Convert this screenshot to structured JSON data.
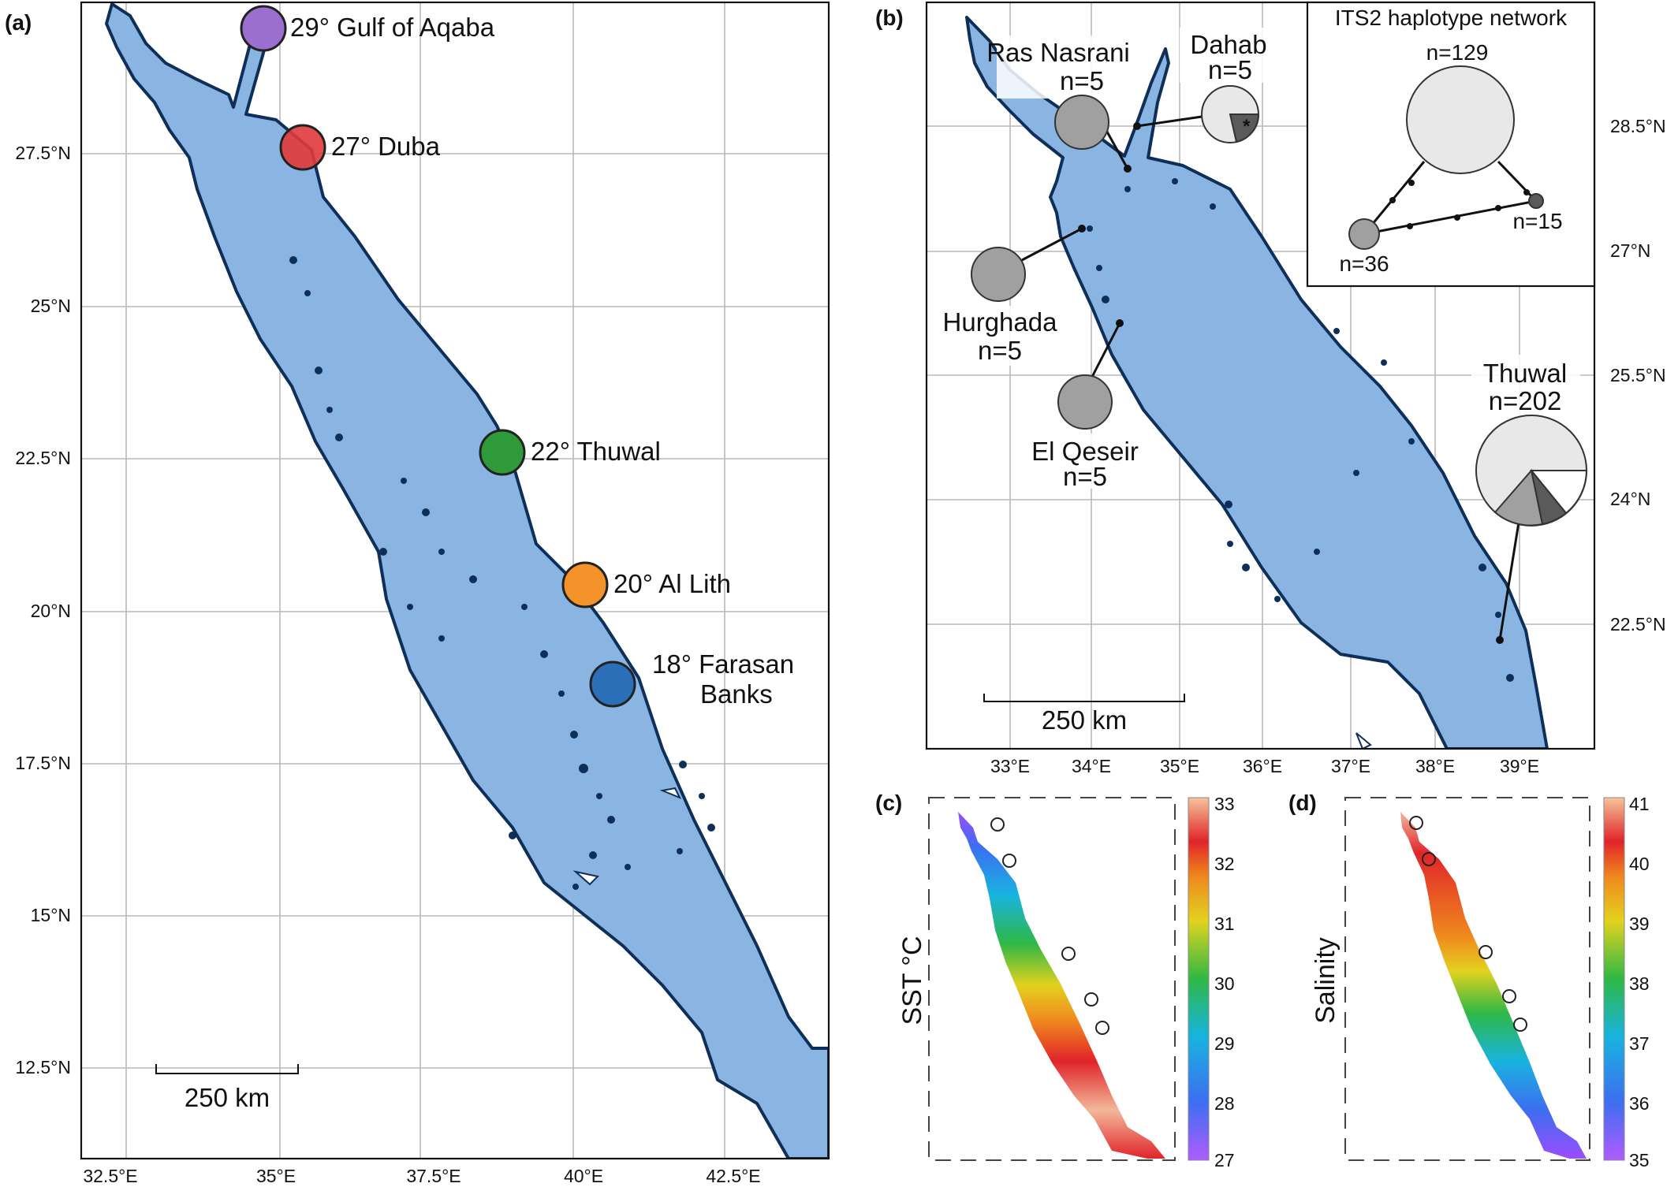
{
  "panels": {
    "a": {
      "tag": "(a)",
      "lat_ticks": [
        "27.5°N",
        "25°N",
        "22.5°N",
        "20°N",
        "17.5°N",
        "15°N",
        "12.5°N"
      ],
      "lon_ticks": [
        "32.5°E",
        "35°E",
        "37.5°E",
        "40°E",
        "42.5°E"
      ],
      "scale_bar": "250 km",
      "sites": [
        {
          "label": "29° Gulf of Aqaba",
          "color": "#9a6fd0"
        },
        {
          "label": "27° Duba",
          "color": "#e03a3c"
        },
        {
          "label": "22° Thuwal",
          "color": "#2e9a39"
        },
        {
          "label": "20° Al Lith",
          "color": "#f5932b"
        },
        {
          "label": "18° Farasan",
          "label2": "Banks",
          "color": "#2a6fb8"
        }
      ]
    },
    "b": {
      "tag": "(b)",
      "lat_ticks": [
        "28.5°N",
        "27°N",
        "25.5°N",
        "24°N",
        "22.5°N"
      ],
      "lon_ticks": [
        "33°E",
        "34°E",
        "35°E",
        "36°E",
        "37°E",
        "38°E",
        "39°E"
      ],
      "scale_bar": "250 km",
      "populations": [
        {
          "name": "Ras Nasrani",
          "n": "n=5"
        },
        {
          "name": "Dahab",
          "n": "n=5"
        },
        {
          "name": "Hurghada",
          "n": "n=5"
        },
        {
          "name": "El Qeseir",
          "n": "n=5"
        },
        {
          "name": "Thuwal",
          "n": "n=202"
        }
      ],
      "network": {
        "title": "ITS2 haplotype network",
        "nodes": [
          {
            "n": "n=129",
            "color": "#e8e8e8"
          },
          {
            "n": "n=15",
            "color": "#5a5a5a"
          },
          {
            "n": "n=36",
            "color": "#a0a0a0"
          }
        ]
      },
      "haplotype_colors": {
        "light": "#e8e8e8",
        "mid": "#a0a0a0",
        "dark": "#5a5a5a",
        "white": "#ffffff"
      },
      "asterisk": "*"
    },
    "c": {
      "tag": "(c)",
      "ylabel": "SST °C",
      "colorbar_ticks": [
        "33",
        "32",
        "31",
        "30",
        "29",
        "28",
        "27"
      ],
      "range": [
        27,
        33
      ]
    },
    "d": {
      "tag": "(d)",
      "ylabel": "Salinity",
      "colorbar_ticks": [
        "41",
        "40",
        "39",
        "38",
        "37",
        "36",
        "35"
      ],
      "range": [
        35,
        41
      ]
    }
  },
  "colormap": [
    "#9b4dff",
    "#3d6ef0",
    "#18b3e0",
    "#2fb845",
    "#e2d21f",
    "#f08a1e",
    "#e0242a",
    "#f3b89a"
  ]
}
